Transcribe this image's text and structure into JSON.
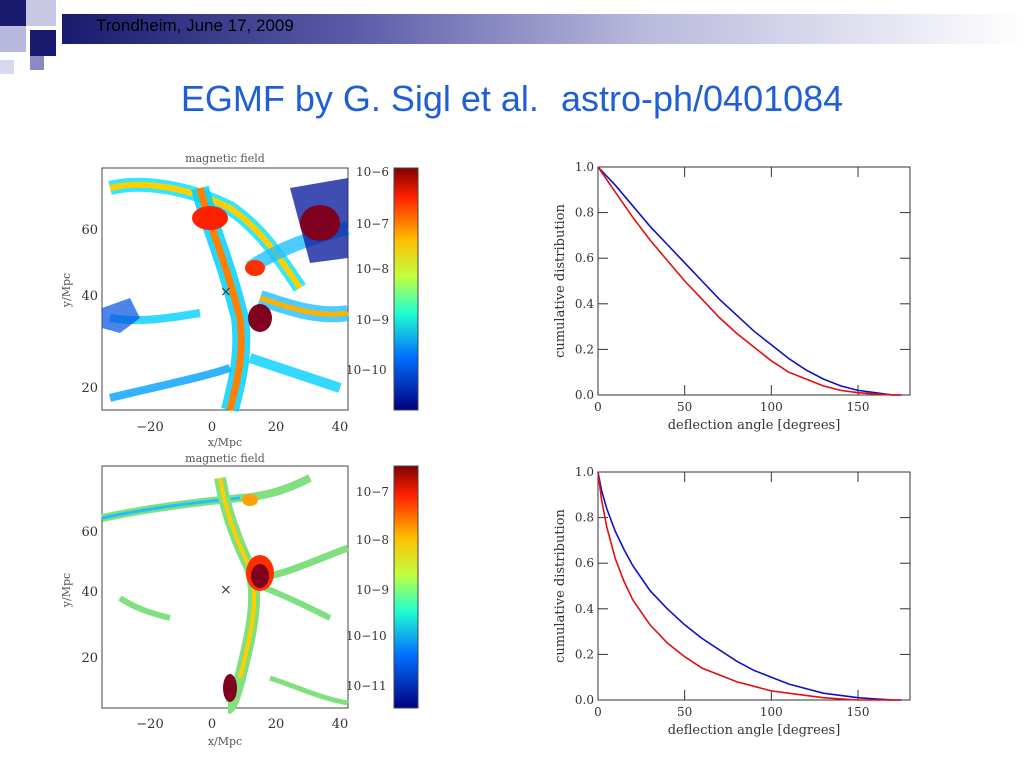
{
  "header": {
    "text": "Trondheim, June 17, 2009"
  },
  "slide": {
    "title_part1": "EGMF by G. Sigl et al.",
    "title_part2": "astro-ph/0401084"
  },
  "maps": [
    {
      "title": "magnetic field",
      "xlabel": "x/Mpc",
      "ylabel": "y/Mpc",
      "xticks": [
        "−20",
        "0",
        "20",
        "40"
      ],
      "yticks": [
        "20",
        "40",
        "60"
      ],
      "colorbar_ticks": [
        "10−6",
        "10−7",
        "10−8",
        "10−9",
        "10−10"
      ]
    },
    {
      "title": "magnetic field",
      "xlabel": "x/Mpc",
      "ylabel": "y/Mpc",
      "xticks": [
        "−20",
        "0",
        "20",
        "40"
      ],
      "yticks": [
        "20",
        "40",
        "60"
      ],
      "colorbar_ticks": [
        "10−7",
        "10−8",
        "10−9",
        "10−10",
        "10−11"
      ]
    }
  ],
  "colors": {
    "blue_curve": "#1010c8",
    "red_curve": "#e01010",
    "title": "#1f5fd6"
  },
  "chart_data": [
    {
      "type": "line",
      "xlabel": "deflection angle [degrees]",
      "ylabel": "cumulative distribution",
      "xlim": [
        0,
        180
      ],
      "ylim": [
        0,
        1.0
      ],
      "xticks": [
        "0",
        "50",
        "100",
        "150"
      ],
      "yticks": [
        "0.0",
        "0.2",
        "0.4",
        "0.6",
        "0.8",
        "1.0"
      ],
      "series": [
        {
          "color": "#1010c8",
          "x": [
            0,
            10,
            20,
            30,
            40,
            50,
            60,
            70,
            80,
            90,
            100,
            110,
            120,
            130,
            140,
            150,
            160,
            170,
            175
          ],
          "y": [
            1.0,
            0.92,
            0.83,
            0.74,
            0.66,
            0.58,
            0.5,
            0.42,
            0.35,
            0.28,
            0.22,
            0.16,
            0.11,
            0.07,
            0.04,
            0.02,
            0.01,
            0.0,
            0.0
          ]
        },
        {
          "color": "#e01010",
          "x": [
            0,
            10,
            20,
            30,
            40,
            50,
            60,
            70,
            80,
            90,
            100,
            110,
            120,
            130,
            140,
            150,
            160,
            170,
            175
          ],
          "y": [
            1.0,
            0.89,
            0.78,
            0.68,
            0.59,
            0.5,
            0.42,
            0.34,
            0.27,
            0.21,
            0.15,
            0.1,
            0.07,
            0.04,
            0.02,
            0.01,
            0.005,
            0.0,
            0.0
          ]
        }
      ]
    },
    {
      "type": "line",
      "xlabel": "deflection angle [degrees]",
      "ylabel": "cumulative distribution",
      "xlim": [
        0,
        180
      ],
      "ylim": [
        0,
        1.0
      ],
      "xticks": [
        "0",
        "50",
        "100",
        "150"
      ],
      "yticks": [
        "0.0",
        "0.2",
        "0.4",
        "0.6",
        "0.8",
        "1.0"
      ],
      "series": [
        {
          "color": "#1010c8",
          "x": [
            0,
            2,
            5,
            10,
            15,
            20,
            30,
            40,
            50,
            60,
            70,
            80,
            90,
            100,
            110,
            120,
            130,
            140,
            150,
            160,
            170,
            175
          ],
          "y": [
            1.0,
            0.92,
            0.84,
            0.74,
            0.66,
            0.59,
            0.48,
            0.4,
            0.33,
            0.27,
            0.22,
            0.17,
            0.13,
            0.1,
            0.07,
            0.05,
            0.03,
            0.02,
            0.01,
            0.005,
            0.0,
            0.0
          ]
        },
        {
          "color": "#e01010",
          "x": [
            0,
            2,
            5,
            10,
            15,
            20,
            30,
            40,
            50,
            60,
            70,
            80,
            90,
            100,
            110,
            120,
            130,
            140,
            150,
            160,
            170,
            175
          ],
          "y": [
            1.0,
            0.88,
            0.76,
            0.62,
            0.52,
            0.44,
            0.33,
            0.25,
            0.19,
            0.14,
            0.11,
            0.08,
            0.06,
            0.04,
            0.03,
            0.02,
            0.01,
            0.005,
            0.0,
            0.0,
            0.0,
            0.0
          ]
        }
      ]
    }
  ]
}
